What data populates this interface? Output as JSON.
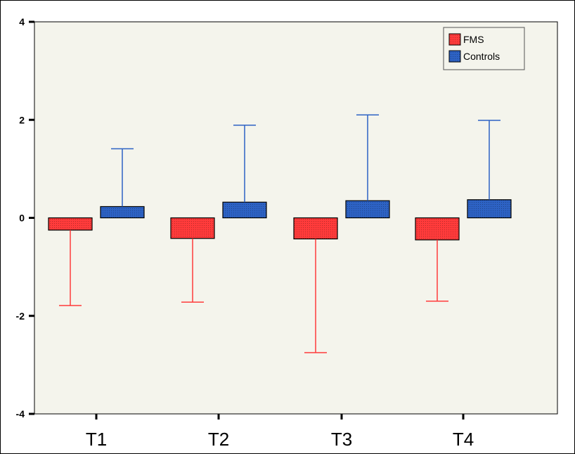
{
  "chart_data": {
    "type": "bar",
    "categories": [
      "T1",
      "T2",
      "T3",
      "T4"
    ],
    "series": [
      {
        "name": "FMS",
        "color": "#ff3b3b",
        "values": [
          -0.25,
          -0.42,
          -0.43,
          -0.45
        ],
        "error_bars": [
          -1.79,
          -1.72,
          -2.75,
          -1.7
        ]
      },
      {
        "name": "Controls",
        "color": "#2d62c4",
        "values": [
          0.23,
          0.32,
          0.35,
          0.37
        ],
        "error_bars": [
          1.41,
          1.89,
          2.1,
          1.99
        ]
      }
    ],
    "yticks": [
      4,
      2,
      0,
      -2,
      -4
    ],
    "ylim": [
      -4,
      4
    ],
    "legend_position": "top-right",
    "grid": false
  }
}
